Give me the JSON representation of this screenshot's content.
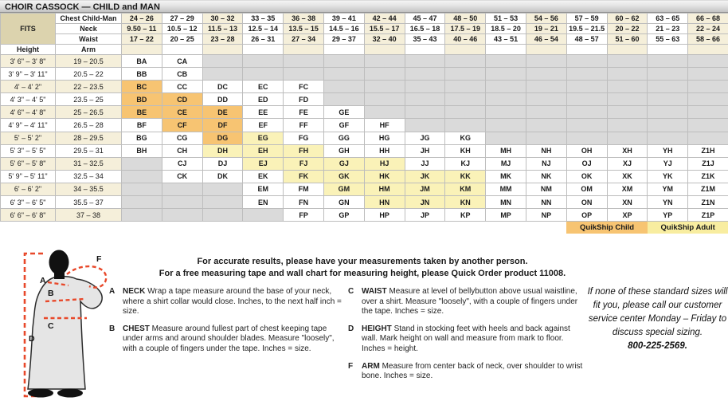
{
  "title": "CHOIR CASSOCK — CHILD and MAN",
  "colors": {
    "quikship_child_highlight": "#F7C472",
    "quikship_adult_highlight": "#FAF2B8",
    "measure_line_red": "#E8492B",
    "header_cream": "#F5EFDA",
    "fits_tan": "#DCD3AE",
    "empty_gray": "#DADADA"
  },
  "table": {
    "fits_label": "FITS",
    "corner_labels": {
      "height": "Height",
      "arm": "Arm"
    },
    "header_rows": [
      {
        "label": "Chest Child-Man",
        "values": [
          "24 – 26",
          "27 – 29",
          "30 – 32",
          "33 – 35",
          "36 – 38",
          "39 – 41",
          "42 – 44",
          "45 – 47",
          "48 – 50",
          "51 – 53",
          "54 – 56",
          "57 – 59",
          "60 – 62",
          "63 – 65",
          "66 – 68"
        ]
      },
      {
        "label": "Neck",
        "values": [
          "9.50 – 11",
          "10.5 – 12",
          "11.5 – 13",
          "12.5 – 14",
          "13.5 – 15",
          "14.5 – 16",
          "15.5 – 17",
          "16.5 – 18",
          "17.5 – 19",
          "18.5 – 20",
          "19 – 21",
          "19.5 – 21.5",
          "20 – 22",
          "21 – 23",
          "22 – 24"
        ]
      },
      {
        "label": "Waist",
        "values": [
          "17 – 22",
          "20 – 25",
          "23 – 28",
          "26 – 31",
          "27 – 34",
          "29 – 37",
          "32 – 40",
          "35 – 43",
          "40 – 46",
          "43 – 51",
          "46 – 54",
          "48 – 57",
          "51 – 60",
          "55 – 63",
          "58 – 66"
        ]
      }
    ],
    "rows": [
      {
        "height": "3' 6\" – 3' 8\"",
        "arm": "19 – 20.5",
        "cells": [
          "BA",
          "CA",
          null,
          null,
          null,
          null,
          null,
          null,
          null,
          null,
          null,
          null,
          null,
          null,
          null
        ]
      },
      {
        "height": "3' 9\" – 3' 11\"",
        "arm": "20.5 – 22",
        "cells": [
          "BB",
          "CB",
          null,
          null,
          null,
          null,
          null,
          null,
          null,
          null,
          null,
          null,
          null,
          null,
          null
        ]
      },
      {
        "height": "4' – 4' 2\"",
        "arm": "22 – 23.5",
        "cells": [
          "BC",
          "CC",
          "DC",
          "EC",
          "FC",
          null,
          null,
          null,
          null,
          null,
          null,
          null,
          null,
          null,
          null
        ]
      },
      {
        "height": "4' 3\" – 4' 5\"",
        "arm": "23.5 – 25",
        "cells": [
          "BD",
          "CD",
          "DD",
          "ED",
          "FD",
          null,
          null,
          null,
          null,
          null,
          null,
          null,
          null,
          null,
          null
        ]
      },
      {
        "height": "4' 6\" – 4' 8\"",
        "arm": "25 – 26.5",
        "cells": [
          "BE",
          "CE",
          "DE",
          "EE",
          "FE",
          "GE",
          null,
          null,
          null,
          null,
          null,
          null,
          null,
          null,
          null
        ]
      },
      {
        "height": "4' 9\" – 4' 11\"",
        "arm": "26.5 – 28",
        "cells": [
          "BF",
          "CF",
          "DF",
          "EF",
          "FF",
          "GF",
          "HF",
          null,
          null,
          null,
          null,
          null,
          null,
          null,
          null
        ]
      },
      {
        "height": "5' – 5' 2\"",
        "arm": "28 – 29.5",
        "cells": [
          "BG",
          "CG",
          "DG",
          "EG",
          "FG",
          "GG",
          "HG",
          "JG",
          "KG",
          null,
          null,
          null,
          null,
          null,
          null
        ]
      },
      {
        "height": "5' 3\" – 5' 5\"",
        "arm": "29.5 – 31",
        "cells": [
          "BH",
          "CH",
          "DH",
          "EH",
          "FH",
          "GH",
          "HH",
          "JH",
          "KH",
          "MH",
          "NH",
          "OH",
          "XH",
          "YH",
          "Z1H"
        ]
      },
      {
        "height": "5' 6\" – 5' 8\"",
        "arm": "31 – 32.5",
        "cells": [
          null,
          "CJ",
          "DJ",
          "EJ",
          "FJ",
          "GJ",
          "HJ",
          "JJ",
          "KJ",
          "MJ",
          "NJ",
          "OJ",
          "XJ",
          "YJ",
          "Z1J"
        ]
      },
      {
        "height": "5' 9\" – 5' 11\"",
        "arm": "32.5 – 34",
        "cells": [
          null,
          "CK",
          "DK",
          "EK",
          "FK",
          "GK",
          "HK",
          "JK",
          "KK",
          "MK",
          "NK",
          "OK",
          "XK",
          "YK",
          "Z1K"
        ]
      },
      {
        "height": "6' – 6' 2\"",
        "arm": "34 – 35.5",
        "cells": [
          null,
          null,
          null,
          "EM",
          "FM",
          "GM",
          "HM",
          "JM",
          "KM",
          "MM",
          "NM",
          "OM",
          "XM",
          "YM",
          "Z1M"
        ]
      },
      {
        "height": "6' 3\" – 6' 5\"",
        "arm": "35.5 – 37",
        "cells": [
          null,
          null,
          null,
          "EN",
          "FN",
          "GN",
          "HN",
          "JN",
          "KN",
          "MN",
          "NN",
          "ON",
          "XN",
          "YN",
          "Z1N"
        ]
      },
      {
        "height": "6' 6\" – 6' 8\"",
        "arm": "37 – 38",
        "cells": [
          null,
          null,
          null,
          null,
          "FP",
          "GP",
          "HP",
          "JP",
          "KP",
          "MP",
          "NP",
          "OP",
          "XP",
          "YP",
          "Z1P"
        ]
      }
    ],
    "quikship": {
      "child_label": "QuikShip Child",
      "adult_label": "QuikShip Adult",
      "child_cells": [
        "BC",
        "BD",
        "CD",
        "BE",
        "CE",
        "DE",
        "CF",
        "DF",
        "DG"
      ],
      "adult_cells": [
        "EG",
        "DH",
        "EH",
        "FH",
        "EJ",
        "FJ",
        "GJ",
        "HJ",
        "FK",
        "GK",
        "HK",
        "JK",
        "KK",
        "GM",
        "HM",
        "JM",
        "KM",
        "HN",
        "JN",
        "KN"
      ]
    }
  },
  "intro": {
    "line1": "For accurate results, please have your measurements taken by another person.",
    "line2": "For a free measuring tape and wall chart for measuring height, please Quick Order product 11008."
  },
  "instructions": [
    {
      "letter": "A",
      "term": "NECK",
      "text": "Wrap a tape measure around the base of your neck, where a shirt collar would close. Inches, to the next half inch = size."
    },
    {
      "letter": "B",
      "term": "CHEST",
      "text": "Measure around fullest part of chest keeping tape under arms and around shoulder blades. Measure \"loosely\", with a couple of fingers under the tape. Inches = size."
    },
    {
      "letter": "C",
      "term": "WAIST",
      "text": "Measure at level of bellybutton above usual waistline, over a shirt. Measure \"loosely\", with a couple of fingers under the tape. Inches = size."
    },
    {
      "letter": "D",
      "term": "HEIGHT",
      "text": "Stand in stocking feet with heels and back against wall. Mark height on wall and measure from mark to floor. Inches = height."
    },
    {
      "letter": "F",
      "term": "ARM",
      "text": "Measure from center back of neck, over shoulder to wrist bone. Inches = size."
    }
  ],
  "special_note": {
    "text": "If none of these standard sizes will fit you, please call our customer service center Monday – Friday to discuss special sizing.",
    "phone": "800-225-2569."
  },
  "figure": {
    "labels": {
      "a": "A",
      "b": "B",
      "c": "C",
      "d": "D",
      "f": "F"
    }
  }
}
